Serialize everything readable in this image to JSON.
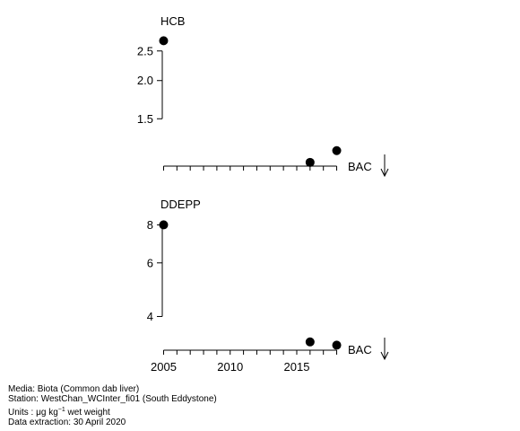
{
  "chart_data": [
    {
      "type": "scatter",
      "title": "HCB",
      "ylog": true,
      "ylim": [
        1.05,
        2.8
      ],
      "xlim": [
        2004.9,
        2018.3
      ],
      "y_ticks": [
        1.5,
        2.0,
        2.5
      ],
      "y_tick_labels": [
        "1.5",
        "2.0",
        "2.5"
      ],
      "x_ticks": [
        2005,
        2006,
        2007,
        2008,
        2009,
        2010,
        2011,
        2012,
        2013,
        2014,
        2015,
        2016,
        2017,
        2018
      ],
      "x_tick_labels": [],
      "points": [
        {
          "x": 2005,
          "y": 2.7
        },
        {
          "x": 2016,
          "y": 1.08
        },
        {
          "x": 2018,
          "y": 1.18
        }
      ],
      "annotation": "BAC"
    },
    {
      "type": "scatter",
      "title": "DDEPP",
      "ylog": true,
      "ylim": [
        3.1,
        8.3
      ],
      "xlim": [
        2004.9,
        2018.3
      ],
      "y_ticks": [
        4,
        6,
        8
      ],
      "y_tick_labels": [
        "4",
        "6",
        "8"
      ],
      "x_ticks": [
        2005,
        2006,
        2007,
        2008,
        2009,
        2010,
        2011,
        2012,
        2013,
        2014,
        2015,
        2016,
        2017,
        2018
      ],
      "x_tick_labels": [
        "2005",
        "2010",
        "2015"
      ],
      "x_tick_label_values": [
        2005,
        2010,
        2015
      ],
      "points": [
        {
          "x": 2005,
          "y": 8.0
        },
        {
          "x": 2016,
          "y": 3.3
        },
        {
          "x": 2018,
          "y": 3.22
        }
      ],
      "annotation": "BAC"
    }
  ],
  "footer": {
    "media": "Media: Biota (Common dab liver)",
    "station": "Station: WestChan_WCInter_fi01 (South Eddystone)",
    "units_prefix": "Units : μg kg",
    "units_exp": "−1",
    "units_suffix": " wet weight",
    "extraction": "Data extraction: 30 April 2020"
  }
}
